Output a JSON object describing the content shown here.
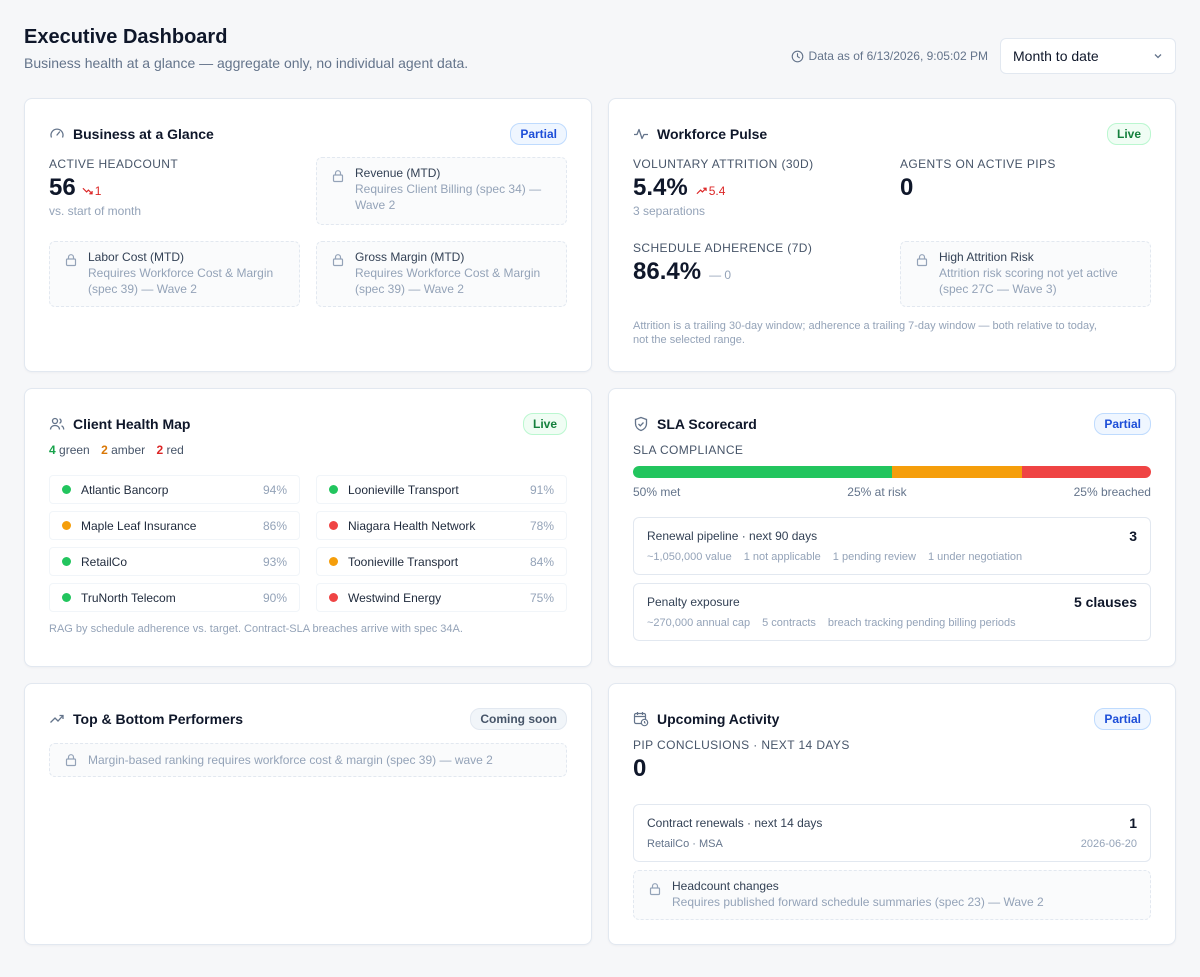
{
  "header": {
    "title": "Executive Dashboard",
    "subtitle": "Business health at a glance — aggregate only, no individual agent data.",
    "as_of": "Data as of 6/13/2026, 9:05:02 PM",
    "range_select": "Month to date"
  },
  "glance": {
    "title": "Business at a Glance",
    "badge": "Partial",
    "headcount_label": "Active Headcount",
    "headcount_value": "56",
    "headcount_delta": "1",
    "headcount_note": "vs. start of month",
    "locked": [
      {
        "title": "Revenue (MTD)",
        "desc1": "Requires Client Billing (spec 34) —",
        "desc2": "Wave 2"
      },
      {
        "title": "Labor Cost (MTD)",
        "desc1": "Requires Workforce Cost & Margin",
        "desc2": "(spec 39) — Wave 2"
      },
      {
        "title": "Gross Margin (MTD)",
        "desc1": "Requires Workforce Cost & Margin",
        "desc2": "(spec 39) — Wave 2"
      }
    ]
  },
  "pulse": {
    "title": "Workforce Pulse",
    "badge": "Live",
    "attrition_label": "Voluntary Attrition (30D)",
    "attrition_value": "5.4%",
    "attrition_delta": "5.4",
    "attrition_note": "3 separations",
    "pips_label": "Agents on Active PIPs",
    "pips_value": "0",
    "adherence_label": "Schedule Adherence (7D)",
    "adherence_value": "86.4%",
    "adherence_delta": "— 0",
    "risk_title": "High Attrition Risk",
    "risk_desc1": "Attrition risk scoring not yet active",
    "risk_desc2": "(spec 27C — Wave 3)",
    "footnote1": "Attrition is a trailing 30-day window; adherence a trailing 7-day window — both relative to today,",
    "footnote2": "not the selected range."
  },
  "clients": {
    "title": "Client Health Map",
    "badge": "Live",
    "green_count": "4",
    "green_label": "green",
    "amber_count": "2",
    "amber_label": "amber",
    "red_count": "2",
    "red_label": "red",
    "items": [
      {
        "name": "Atlantic Bancorp",
        "pct": "94%",
        "status": "green"
      },
      {
        "name": "Loonieville Transport",
        "pct": "91%",
        "status": "green"
      },
      {
        "name": "Maple Leaf Insurance",
        "pct": "86%",
        "status": "amber"
      },
      {
        "name": "Niagara Health Network",
        "pct": "78%",
        "status": "red"
      },
      {
        "name": "RetailCo",
        "pct": "93%",
        "status": "green"
      },
      {
        "name": "Toonieville Transport",
        "pct": "84%",
        "status": "amber"
      },
      {
        "name": "TruNorth Telecom",
        "pct": "90%",
        "status": "green"
      },
      {
        "name": "Westwind Energy",
        "pct": "75%",
        "status": "red"
      }
    ],
    "footnote": "RAG by schedule adherence vs. target. Contract-SLA breaches arrive with spec 34A.",
    "colors": {
      "green": "#22c55e",
      "amber": "#f59e0b",
      "red": "#ef4444"
    }
  },
  "sla": {
    "title": "SLA Scorecard",
    "badge": "Partial",
    "compliance_label": "SLA Compliance",
    "met_fraction": 0.5,
    "at_risk_fraction": 0.25,
    "breached_fraction": 0.25,
    "met_label": "50% met",
    "at_risk_label": "25% at risk",
    "breached_label": "25% breached",
    "renewal_title": "Renewal pipeline · next 90 days",
    "renewal_count": "3",
    "renewal_meta": [
      "~1,050,000 value",
      "1 not applicable",
      "1 pending review",
      "1 under negotiation"
    ],
    "penalty_title": "Penalty exposure",
    "penalty_count": "5 clauses",
    "penalty_meta": [
      "~270,000 annual cap",
      "5 contracts",
      "breach tracking pending billing periods"
    ]
  },
  "performers": {
    "title": "Top & Bottom Performers",
    "badge": "Coming soon",
    "locked_desc": "Margin-based ranking requires workforce cost & margin (spec 39) — wave 2"
  },
  "activity": {
    "title": "Upcoming Activity",
    "badge": "Partial",
    "pip_label": "PIP Conclusions · Next 14 Days",
    "pip_value": "0",
    "renewals_title": "Contract renewals · next 14 days",
    "renewals_count": "1",
    "renewals_client": "RetailCo · MSA",
    "renewals_date": "2026-06-20",
    "headcount_title": "Headcount changes",
    "headcount_desc": "Requires published forward schedule summaries (spec 23) — Wave 2"
  }
}
